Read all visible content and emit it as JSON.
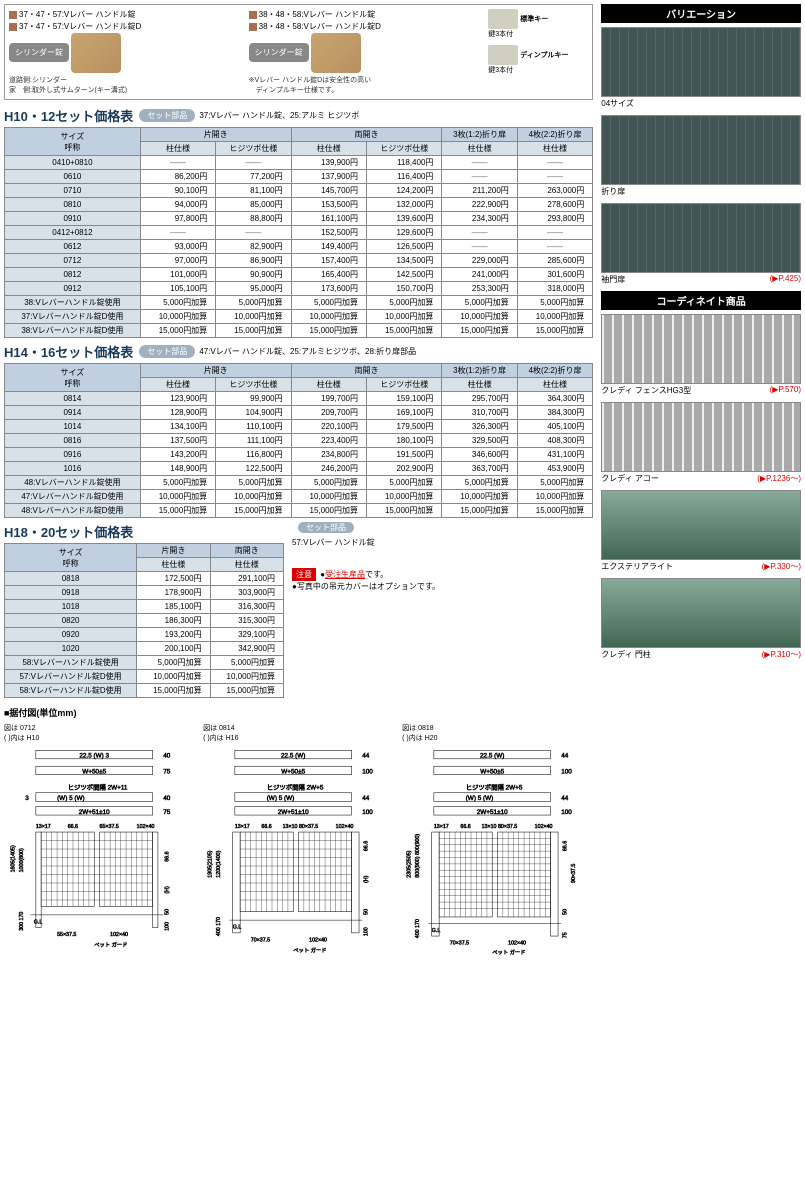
{
  "locks": {
    "left": {
      "l1": "37・47・57:Vレバー ハンドル錠",
      "l2": "37・47・57:Vレバー ハンドル錠D",
      "badge": "シリンダー錠",
      "note": "道路側:シリンダー\n家　側:取外し式サムターン(キー溝式)"
    },
    "right": {
      "l1": "38・48・58:Vレバー ハンドル錠",
      "l2": "38・48・58:Vレバー ハンドル錠D",
      "badge": "シリンダー錠",
      "note": "※Vレバー ハンドル錠Dは安全性の高い\n　ディンプルキー仕様です。"
    },
    "key1": "標準キー",
    "key1sub": "鍵3本付",
    "key2": "ディンプルキー",
    "key2sub": "鍵3本付"
  },
  "table1": {
    "title": "H10・12セット価格表",
    "pill": "セット部品",
    "parts": "37:Vレバー ハンドル錠、25:アルミ ヒジツボ",
    "h1": "サイズ\n呼称",
    "g1": "片開き",
    "g2": "両開き",
    "g3": "3枚(1:2)折り扉",
    "g4": "4枚(2:2)折り扉",
    "sh": [
      "柱仕様",
      "ヒジツボ仕様",
      "柱仕様",
      "ヒジツボ仕様",
      "柱仕様",
      "柱仕様"
    ],
    "rows": [
      {
        "s": "0410+0810",
        "v": [
          "——",
          "——",
          "139,900円",
          "118,400円",
          "——",
          "——"
        ]
      },
      {
        "s": "0610",
        "v": [
          "86,200円",
          "77,200円",
          "137,900円",
          "116,400円",
          "——",
          "——"
        ]
      },
      {
        "s": "0710",
        "v": [
          "90,100円",
          "81,100円",
          "145,700円",
          "124,200円",
          "211,200円",
          "263,000円"
        ]
      },
      {
        "s": "0810",
        "v": [
          "94,000円",
          "85,000円",
          "153,500円",
          "132,000円",
          "222,900円",
          "278,600円"
        ]
      },
      {
        "s": "0910",
        "v": [
          "97,800円",
          "88,800円",
          "161,100円",
          "139,600円",
          "234,300円",
          "293,800円"
        ]
      },
      {
        "s": "0412+0812",
        "v": [
          "——",
          "——",
          "152,500円",
          "129,600円",
          "——",
          "——"
        ]
      },
      {
        "s": "0612",
        "v": [
          "93,000円",
          "82,900円",
          "149,400円",
          "126,500円",
          "——",
          "——"
        ]
      },
      {
        "s": "0712",
        "v": [
          "97,000円",
          "86,900円",
          "157,400円",
          "134,500円",
          "229,000円",
          "285,600円"
        ]
      },
      {
        "s": "0812",
        "v": [
          "101,000円",
          "90,900円",
          "165,400円",
          "142,500円",
          "241,000円",
          "301,600円"
        ]
      },
      {
        "s": "0912",
        "v": [
          "105,100円",
          "95,000円",
          "173,600円",
          "150,700円",
          "253,300円",
          "318,000円"
        ]
      },
      {
        "s": "38:Vレバーハンドル錠使用",
        "v": [
          "5,000円加算",
          "5,000円加算",
          "5,000円加算",
          "5,000円加算",
          "5,000円加算",
          "5,000円加算"
        ]
      },
      {
        "s": "37:Vレバーハンドル錠D使用",
        "v": [
          "10,000円加算",
          "10,000円加算",
          "10,000円加算",
          "10,000円加算",
          "10,000円加算",
          "10,000円加算"
        ]
      },
      {
        "s": "38:Vレバーハンドル錠D使用",
        "v": [
          "15,000円加算",
          "15,000円加算",
          "15,000円加算",
          "15,000円加算",
          "15,000円加算",
          "15,000円加算"
        ]
      }
    ]
  },
  "table2": {
    "title": "H14・16セット価格表",
    "pill": "セット部品",
    "parts": "47:Vレバー ハンドル錠、25:アルミヒジツボ、28:折り扉部品",
    "rows": [
      {
        "s": "0814",
        "v": [
          "123,900円",
          "99,900円",
          "199,700円",
          "159,100円",
          "295,700円",
          "364,300円"
        ]
      },
      {
        "s": "0914",
        "v": [
          "128,900円",
          "104,900円",
          "209,700円",
          "169,100円",
          "310,700円",
          "384,300円"
        ]
      },
      {
        "s": "1014",
        "v": [
          "134,100円",
          "110,100円",
          "220,100円",
          "179,500円",
          "326,300円",
          "405,100円"
        ]
      },
      {
        "s": "0816",
        "v": [
          "137,500円",
          "111,100円",
          "223,400円",
          "180,100円",
          "329,500円",
          "408,300円"
        ]
      },
      {
        "s": "0916",
        "v": [
          "143,200円",
          "116,800円",
          "234,800円",
          "191,500円",
          "346,600円",
          "431,100円"
        ]
      },
      {
        "s": "1016",
        "v": [
          "148,900円",
          "122,500円",
          "246,200円",
          "202,900円",
          "363,700円",
          "453,900円"
        ]
      },
      {
        "s": "48:Vレバーハンドル錠使用",
        "v": [
          "5,000円加算",
          "5,000円加算",
          "5,000円加算",
          "5,000円加算",
          "5,000円加算",
          "5,000円加算"
        ]
      },
      {
        "s": "47:Vレバーハンドル錠D使用",
        "v": [
          "10,000円加算",
          "10,000円加算",
          "10,000円加算",
          "10,000円加算",
          "10,000円加算",
          "10,000円加算"
        ]
      },
      {
        "s": "48:Vレバーハンドル錠D使用",
        "v": [
          "15,000円加算",
          "15,000円加算",
          "15,000円加算",
          "15,000円加算",
          "15,000円加算",
          "15,000円加算"
        ]
      }
    ]
  },
  "table3": {
    "title": "H18・20セット価格表",
    "pill": "セット部品",
    "parts": "57:Vレバー ハンドル錠",
    "h1": "サイズ\n呼称",
    "g1": "片開き",
    "g2": "両開き",
    "sh": [
      "柱仕様",
      "柱仕様"
    ],
    "caution": "注意",
    "order": "受注生産品",
    "orderSuffix": "です。",
    "note2": "●写真中の吊元カバーはオプションです。",
    "rows": [
      {
        "s": "0818",
        "v": [
          "172,500円",
          "291,100円"
        ]
      },
      {
        "s": "0918",
        "v": [
          "178,900円",
          "303,900円"
        ]
      },
      {
        "s": "1018",
        "v": [
          "185,100円",
          "316,300円"
        ]
      },
      {
        "s": "0820",
        "v": [
          "186,300円",
          "315,300円"
        ]
      },
      {
        "s": "0920",
        "v": [
          "193,200円",
          "329,100円"
        ]
      },
      {
        "s": "1020",
        "v": [
          "200,100円",
          "342,900円"
        ]
      },
      {
        "s": "58:Vレバーハンドル錠使用",
        "v": [
          "5,000円加算",
          "5,000円加算"
        ]
      },
      {
        "s": "57:Vレバーハンドル錠D使用",
        "v": [
          "10,000円加算",
          "10,000円加算"
        ]
      },
      {
        "s": "58:Vレバーハンドル錠D使用",
        "v": [
          "15,000円加算",
          "15,000円加算"
        ]
      }
    ]
  },
  "diag": {
    "title": "■据付図(単位mm)",
    "d1": "図は 0712\n( )内は H10",
    "d2": "図は 0814\n( )内は H16",
    "d3": "図は 0818\n( )内は H20"
  },
  "side": {
    "h1": "バリエーション",
    "h2": "コーディネイト商品",
    "items1": [
      {
        "cap": "04サイズ",
        "link": ""
      },
      {
        "cap": "折り扉",
        "link": ""
      },
      {
        "cap": "袖門扉",
        "link": "(▶P.425)"
      }
    ],
    "items2": [
      {
        "cap": "クレディ フェンスHG3型",
        "link": "(▶P.570)"
      },
      {
        "cap": "クレディ アコー",
        "link": "(▶P.1236〜)"
      },
      {
        "cap": "エクステリアライト",
        "link": "(▶P.330〜)"
      },
      {
        "cap": "クレディ 門柱",
        "link": "(▶P.310〜)"
      }
    ]
  }
}
